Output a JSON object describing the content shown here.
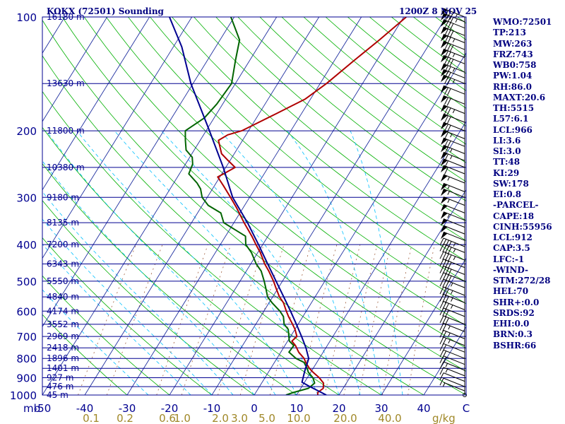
{
  "header": {
    "station": "KOKX (72501) Sounding",
    "datetime": "1200Z 8 NOV 25"
  },
  "indices": [
    "WMO:72501",
    "TP:213",
    "MW:263",
    "FRZ:743",
    "WB0:758",
    "PW:1.04",
    "RH:86.0",
    "MAXT:20.6",
    "TH:5515",
    "L57:6.1",
    "LCL:966",
    "LI:3.6",
    "SI:3.0",
    "TT:48",
    "KI:29",
    "SW:178",
    "EI:0.8",
    "-PARCEL-",
    "CAPE:18",
    "CINH:55956",
    "LCL:912",
    "CAP:3.5",
    "LFC:-1",
    "-WIND-",
    "STM:272/28",
    "HEL:70",
    "SHR+:0.0",
    "SRDS:92",
    "EHI:0.0",
    "BRN:0.3",
    "BSHR:66"
  ],
  "chart_data": {
    "type": "line",
    "chart_kind": "skew-T log-P sounding",
    "pressure_unit_label": "mb",
    "mixing_ratio_unit_label": "g/kg",
    "temperature_ticks": [
      "-50",
      "-40",
      "-30",
      "-20",
      "-10",
      "0",
      "10",
      "20",
      "30",
      "40",
      "C"
    ],
    "temperature_tick_values": [
      -50,
      -40,
      -30,
      -20,
      -10,
      0,
      10,
      20,
      30,
      40,
      50
    ],
    "mixing_ratio_ticks": [
      "0.1",
      "0.2",
      "0.6",
      "1.0",
      "2.0",
      "3.0",
      "5.0",
      "10.0",
      "20.0",
      "40.0"
    ],
    "mixing_ratio_tick_x": [
      0.115,
      0.195,
      0.295,
      0.33,
      0.42,
      0.465,
      0.53,
      0.605,
      0.715,
      0.82
    ],
    "pressure_labels": [
      {
        "p": 100,
        "label": "100"
      },
      {
        "p": 200,
        "label": "200"
      },
      {
        "p": 300,
        "label": "300"
      },
      {
        "p": 400,
        "label": "400"
      },
      {
        "p": 500,
        "label": "500"
      },
      {
        "p": 600,
        "label": "600"
      },
      {
        "p": 700,
        "label": "700"
      },
      {
        "p": 800,
        "label": "800"
      },
      {
        "p": 900,
        "label": "900"
      },
      {
        "p": 1000,
        "label": "1000"
      }
    ],
    "height_labels": [
      {
        "p": 100,
        "label": "16180 m"
      },
      {
        "p": 150,
        "label": "13630 m"
      },
      {
        "p": 200,
        "label": "11800 m"
      },
      {
        "p": 250,
        "label": "10380 m"
      },
      {
        "p": 300,
        "label": "9180 m"
      },
      {
        "p": 350,
        "label": "8135 m"
      },
      {
        "p": 400,
        "label": "7200 m"
      },
      {
        "p": 450,
        "label": "6343 m"
      },
      {
        "p": 500,
        "label": "5550 m"
      },
      {
        "p": 550,
        "label": "4840 m"
      },
      {
        "p": 600,
        "label": "4174 m"
      },
      {
        "p": 650,
        "label": "3552 m"
      },
      {
        "p": 700,
        "label": "2969 m"
      },
      {
        "p": 750,
        "label": "2418 m"
      },
      {
        "p": 800,
        "label": "1896 m"
      },
      {
        "p": 850,
        "label": "1401 m"
      },
      {
        "p": 900,
        "label": "927 m"
      },
      {
        "p": 950,
        "label": "476 m"
      },
      {
        "p": 1000,
        "label": "45 m"
      }
    ],
    "series": [
      {
        "color": "#b00000",
        "points": [
          [
            1000,
            15
          ],
          [
            985,
            14.6
          ],
          [
            960,
            15.3
          ],
          [
            930,
            14.6
          ],
          [
            900,
            12.8
          ],
          [
            870,
            10.5
          ],
          [
            850,
            9.1
          ],
          [
            820,
            7.4
          ],
          [
            800,
            6.4
          ],
          [
            770,
            4.2
          ],
          [
            740,
            2.5
          ],
          [
            720,
            1.0
          ],
          [
            700,
            1.5
          ],
          [
            670,
            0.0
          ],
          [
            650,
            -1.3
          ],
          [
            620,
            -3.4
          ],
          [
            600,
            -4.7
          ],
          [
            570,
            -6.6
          ],
          [
            550,
            -8.4
          ],
          [
            520,
            -10.6
          ],
          [
            500,
            -12.1
          ],
          [
            470,
            -14.7
          ],
          [
            450,
            -16.7
          ],
          [
            420,
            -19.4
          ],
          [
            400,
            -21.6
          ],
          [
            380,
            -23.8
          ],
          [
            350,
            -27.6
          ],
          [
            320,
            -31.5
          ],
          [
            300,
            -34.5
          ],
          [
            280,
            -37.8
          ],
          [
            265,
            -40.5
          ],
          [
            260,
            -39.6
          ],
          [
            250,
            -37.8
          ],
          [
            240,
            -40.4
          ],
          [
            230,
            -43.0
          ],
          [
            212,
            -45.7
          ],
          [
            205,
            -44.3
          ],
          [
            200,
            -41.6
          ],
          [
            180,
            -35.9
          ],
          [
            165,
            -31.3
          ],
          [
            150,
            -28.5
          ],
          [
            130,
            -25.3
          ],
          [
            115,
            -22.4
          ],
          [
            100,
            -19.4
          ]
        ]
      },
      {
        "color": "#006400",
        "points": [
          [
            1000,
            7.5
          ],
          [
            985,
            8.8
          ],
          [
            960,
            11.8
          ],
          [
            930,
            12.5
          ],
          [
            900,
            11.3
          ],
          [
            870,
            9.4
          ],
          [
            850,
            8.6
          ],
          [
            820,
            7.0
          ],
          [
            800,
            4.5
          ],
          [
            770,
            1.9
          ],
          [
            740,
            2.1
          ],
          [
            720,
            0.4
          ],
          [
            700,
            -0.4
          ],
          [
            670,
            -1.6
          ],
          [
            650,
            -3.3
          ],
          [
            620,
            -4.6
          ],
          [
            600,
            -6.2
          ],
          [
            570,
            -9.3
          ],
          [
            550,
            -11.2
          ],
          [
            520,
            -13.0
          ],
          [
            500,
            -14.3
          ],
          [
            470,
            -16.5
          ],
          [
            450,
            -18.7
          ],
          [
            420,
            -21.5
          ],
          [
            400,
            -24.0
          ],
          [
            380,
            -25.3
          ],
          [
            365,
            -28.8
          ],
          [
            350,
            -32.4
          ],
          [
            330,
            -34.5
          ],
          [
            315,
            -38.6
          ],
          [
            300,
            -41.2
          ],
          [
            285,
            -42.8
          ],
          [
            275,
            -44.5
          ],
          [
            260,
            -47.8
          ],
          [
            245,
            -48.3
          ],
          [
            235,
            -49.4
          ],
          [
            225,
            -51.9
          ],
          [
            212,
            -53.5
          ],
          [
            200,
            -54.9
          ],
          [
            185,
            -52.3
          ],
          [
            170,
            -51.4
          ],
          [
            150,
            -50.9
          ],
          [
            130,
            -53.4
          ],
          [
            115,
            -55.4
          ],
          [
            100,
            -60.8
          ]
        ]
      },
      {
        "color": "#000090",
        "points": [
          [
            1000,
            17.0
          ],
          [
            975,
            14.5
          ],
          [
            950,
            11.9
          ],
          [
            925,
            9.4
          ],
          [
            900,
            9.0
          ],
          [
            870,
            8.5
          ],
          [
            850,
            8.2
          ],
          [
            820,
            7.8
          ],
          [
            800,
            7.5
          ],
          [
            750,
            5.3
          ],
          [
            700,
            2.6
          ],
          [
            650,
            -0.4
          ],
          [
            600,
            -3.7
          ],
          [
            550,
            -7.4
          ],
          [
            500,
            -11.5
          ],
          [
            450,
            -16.0
          ],
          [
            400,
            -21.0
          ],
          [
            350,
            -26.8
          ],
          [
            300,
            -34.0
          ],
          [
            250,
            -40.6
          ],
          [
            200,
            -49.2
          ],
          [
            150,
            -60.5
          ],
          [
            120,
            -68.0
          ],
          [
            100,
            -75.3
          ]
        ]
      }
    ],
    "wind_barbs": [
      {
        "p": 100,
        "speed": 85
      },
      {
        "p": 103,
        "speed": 85
      },
      {
        "p": 107,
        "speed": 80
      },
      {
        "p": 112,
        "speed": 80
      },
      {
        "p": 117,
        "speed": 75
      },
      {
        "p": 122,
        "speed": 80
      },
      {
        "p": 128,
        "speed": 75
      },
      {
        "p": 133,
        "speed": 80
      },
      {
        "p": 140,
        "speed": 75
      },
      {
        "p": 145,
        "speed": 70
      },
      {
        "p": 150,
        "speed": 75
      },
      {
        "p": 160,
        "speed": 70
      },
      {
        "p": 170,
        "speed": 70
      },
      {
        "p": 180,
        "speed": 75
      },
      {
        "p": 190,
        "speed": 70
      },
      {
        "p": 200,
        "speed": 70
      },
      {
        "p": 210,
        "speed": 65
      },
      {
        "p": 220,
        "speed": 70
      },
      {
        "p": 230,
        "speed": 65
      },
      {
        "p": 240,
        "speed": 65
      },
      {
        "p": 250,
        "speed": 60
      },
      {
        "p": 260,
        "speed": 60
      },
      {
        "p": 275,
        "speed": 55
      },
      {
        "p": 290,
        "speed": 55
      },
      {
        "p": 300,
        "speed": 55
      },
      {
        "p": 315,
        "speed": 55
      },
      {
        "p": 330,
        "speed": 50
      },
      {
        "p": 345,
        "speed": 55
      },
      {
        "p": 360,
        "speed": 50
      },
      {
        "p": 375,
        "speed": 50
      },
      {
        "p": 390,
        "speed": 50
      },
      {
        "p": 405,
        "speed": 45
      },
      {
        "p": 420,
        "speed": 45
      },
      {
        "p": 440,
        "speed": 45
      },
      {
        "p": 460,
        "speed": 40
      },
      {
        "p": 480,
        "speed": 40
      },
      {
        "p": 500,
        "speed": 40
      },
      {
        "p": 520,
        "speed": 35
      },
      {
        "p": 545,
        "speed": 35
      },
      {
        "p": 570,
        "speed": 35
      },
      {
        "p": 595,
        "speed": 35
      },
      {
        "p": 620,
        "speed": 30
      },
      {
        "p": 650,
        "speed": 30
      },
      {
        "p": 680,
        "speed": 25
      },
      {
        "p": 710,
        "speed": 25
      },
      {
        "p": 740,
        "speed": 25
      },
      {
        "p": 770,
        "speed": 20
      },
      {
        "p": 800,
        "speed": 20
      },
      {
        "p": 830,
        "speed": 20
      },
      {
        "p": 860,
        "speed": 15
      },
      {
        "p": 890,
        "speed": 15
      },
      {
        "p": 920,
        "speed": 10
      },
      {
        "p": 950,
        "speed": 10
      },
      {
        "p": 975,
        "speed": 5
      },
      {
        "p": 1000,
        "speed": 0
      }
    ]
  }
}
